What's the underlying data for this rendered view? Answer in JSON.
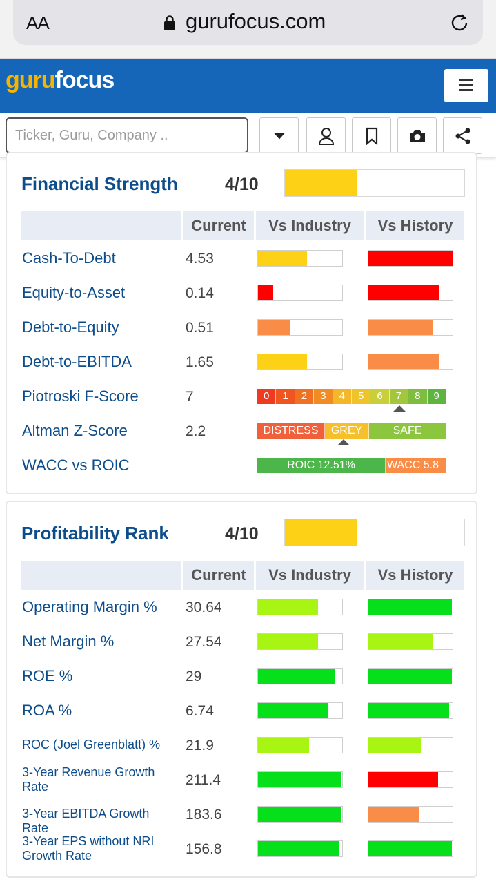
{
  "browser": {
    "aa_label": "AA",
    "url": "gurufocus.com"
  },
  "header": {
    "logo_guru": "guru",
    "logo_focus": "focus"
  },
  "search": {
    "placeholder": "Ticker, Guru, Company .."
  },
  "icons": {
    "lock": "lock-icon",
    "reload": "reload-icon",
    "menu": "hamburger-menu-icon",
    "dropdown": "caret-down-icon",
    "user": "user-icon",
    "bookmark": "bookmark-icon",
    "camera": "camera-icon",
    "share": "share-icon"
  },
  "colors": {
    "brand_blue": "#1565b8",
    "title_blue": "#0d4d8b",
    "yellow": "#fcd116",
    "red": "#fe0000",
    "orange": "#f98d47",
    "lime": "#a8f514",
    "green": "#05e01b"
  },
  "columns": {
    "current": "Current",
    "vs_industry": "Vs Industry",
    "vs_history": "Vs History"
  },
  "financial_strength": {
    "title": "Financial Strength",
    "score": "4/10",
    "score_fraction": 0.4,
    "rows": [
      {
        "label": "Cash-To-Debt",
        "value": "4.53",
        "industry": {
          "color": "#fcd116",
          "fill": 0.58
        },
        "history": {
          "color": "#fe0000",
          "fill": 1.0
        }
      },
      {
        "label": "Equity-to-Asset",
        "value": "0.14",
        "industry": {
          "color": "#fe0000",
          "fill": 0.18
        },
        "history": {
          "color": "#fe0000",
          "fill": 0.84
        }
      },
      {
        "label": "Debt-to-Equity",
        "value": "0.51",
        "industry": {
          "color": "#f98d47",
          "fill": 0.38
        },
        "history": {
          "color": "#f98d47",
          "fill": 0.76
        }
      },
      {
        "label": "Debt-to-EBITDA",
        "value": "1.65",
        "industry": {
          "color": "#fcd116",
          "fill": 0.58
        },
        "history": {
          "color": "#f98d47",
          "fill": 0.84
        }
      }
    ],
    "piotroski": {
      "label": "Piotroski F-Score",
      "value": "7",
      "scale": [
        "0",
        "1",
        "2",
        "3",
        "4",
        "5",
        "6",
        "7",
        "8",
        "9"
      ],
      "scale_colors": [
        "#ee3b1f",
        "#ee5521",
        "#ef7222",
        "#f08c23",
        "#f4b729",
        "#efc42a",
        "#c9cf3b",
        "#a3c63d",
        "#7fbd41",
        "#5eb43f"
      ],
      "marker_index": 7
    },
    "altman": {
      "label": "Altman Z-Score",
      "value": "2.2",
      "zones": [
        {
          "label": "DISTRESS",
          "color": "#f0603a"
        },
        {
          "label": "GREY",
          "color": "#f5c02c"
        },
        {
          "label": "SAFE",
          "color": "#8cc63f"
        }
      ],
      "marker_fraction": 0.455
    },
    "wacc_roic": {
      "label": "WACC vs ROIC",
      "roic_label": "ROIC 12.51%",
      "wacc_label": "WACC 5.8",
      "roic_color": "#4cb64a",
      "wacc_color": "#f98d47"
    }
  },
  "profitability_rank": {
    "title": "Profitability Rank",
    "score": "4/10",
    "score_fraction": 0.4,
    "rows": [
      {
        "label": "Operating Margin %",
        "value": "30.64",
        "small": false,
        "industry": {
          "color": "#a8f514",
          "fill": 0.71
        },
        "history": {
          "color": "#05e01b",
          "fill": 0.99
        }
      },
      {
        "label": "Net Margin %",
        "value": "27.54",
        "small": false,
        "industry": {
          "color": "#a8f514",
          "fill": 0.71
        },
        "history": {
          "color": "#a8f514",
          "fill": 0.77
        }
      },
      {
        "label": "ROE %",
        "value": "29",
        "small": false,
        "industry": {
          "color": "#05e01b",
          "fill": 0.91
        },
        "history": {
          "color": "#05e01b",
          "fill": 0.99
        }
      },
      {
        "label": "ROA %",
        "value": "6.74",
        "small": false,
        "industry": {
          "color": "#05e01b",
          "fill": 0.84
        },
        "history": {
          "color": "#05e01b",
          "fill": 0.96
        }
      },
      {
        "label": "ROC (Joel Greenblatt) %",
        "value": "21.9",
        "small": true,
        "industry": {
          "color": "#a8f514",
          "fill": 0.61
        },
        "history": {
          "color": "#a8f514",
          "fill": 0.62
        }
      },
      {
        "label": "3-Year Revenue Growth Rate",
        "value": "211.4",
        "small": true,
        "industry": {
          "color": "#05e01b",
          "fill": 0.98
        },
        "history": {
          "color": "#fe0000",
          "fill": 0.83
        }
      },
      {
        "label": "3-Year EBITDA Growth Rate",
        "value": "183.6",
        "small": true,
        "industry": {
          "color": "#05e01b",
          "fill": 0.98
        },
        "history": {
          "color": "#f98d47",
          "fill": 0.6
        }
      },
      {
        "label": "3-Year EPS without NRI Growth Rate",
        "value": "156.8",
        "small": true,
        "industry": {
          "color": "#05e01b",
          "fill": 0.96
        },
        "history": {
          "color": "#05e01b",
          "fill": 0.99
        }
      }
    ]
  }
}
